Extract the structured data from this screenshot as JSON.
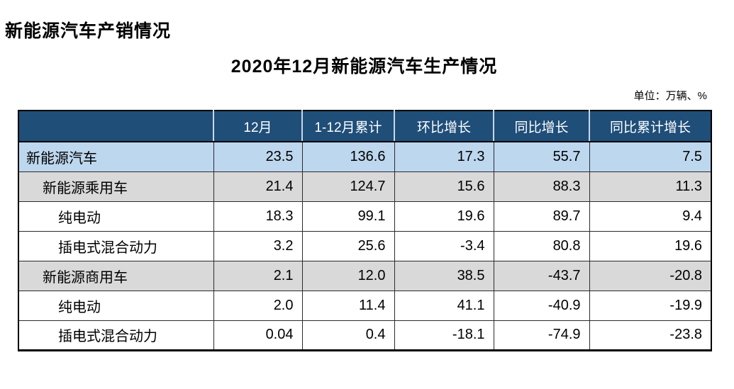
{
  "page": {
    "title": "新能源汽车产销情况",
    "subtitle": "2020年12月新能源汽车生产情况",
    "unit_label": "单位：万辆、%"
  },
  "colors": {
    "header_bg": "#1F4E79",
    "header_text": "#FFFFFF",
    "total_row_bg": "#BDD7EE",
    "group_row_bg": "#D9D9D9",
    "body_text": "#000000"
  },
  "chart_data": {
    "type": "table",
    "title": "2020年12月新能源汽车生产情况",
    "unit": "单位：万辆、%",
    "columns": [
      "",
      "12月",
      "1-12月累计",
      "环比增长",
      "同比增长",
      "同比累计增长"
    ],
    "rows": [
      {
        "label": "新能源汽车",
        "indent": 0,
        "style": "total",
        "values": [
          "23.5",
          "136.6",
          "17.3",
          "55.7",
          "7.5"
        ]
      },
      {
        "label": "新能源乘用车",
        "indent": 1,
        "style": "group",
        "values": [
          "21.4",
          "124.7",
          "15.6",
          "88.3",
          "11.3"
        ]
      },
      {
        "label": "纯电动",
        "indent": 2,
        "style": "plain",
        "values": [
          "18.3",
          "99.1",
          "19.6",
          "89.7",
          "9.4"
        ]
      },
      {
        "label": "插电式混合动力",
        "indent": 2,
        "style": "plain",
        "values": [
          "3.2",
          "25.6",
          "-3.4",
          "80.8",
          "19.6"
        ]
      },
      {
        "label": "新能源商用车",
        "indent": 1,
        "style": "group",
        "values": [
          "2.1",
          "12.0",
          "38.5",
          "-43.7",
          "-20.8"
        ]
      },
      {
        "label": "纯电动",
        "indent": 2,
        "style": "plain",
        "values": [
          "2.0",
          "11.4",
          "41.1",
          "-40.9",
          "-19.9"
        ]
      },
      {
        "label": "插电式混合动力",
        "indent": 2,
        "style": "plain",
        "values": [
          "0.04",
          "0.4",
          "-18.1",
          "-74.9",
          "-23.8"
        ]
      }
    ]
  }
}
